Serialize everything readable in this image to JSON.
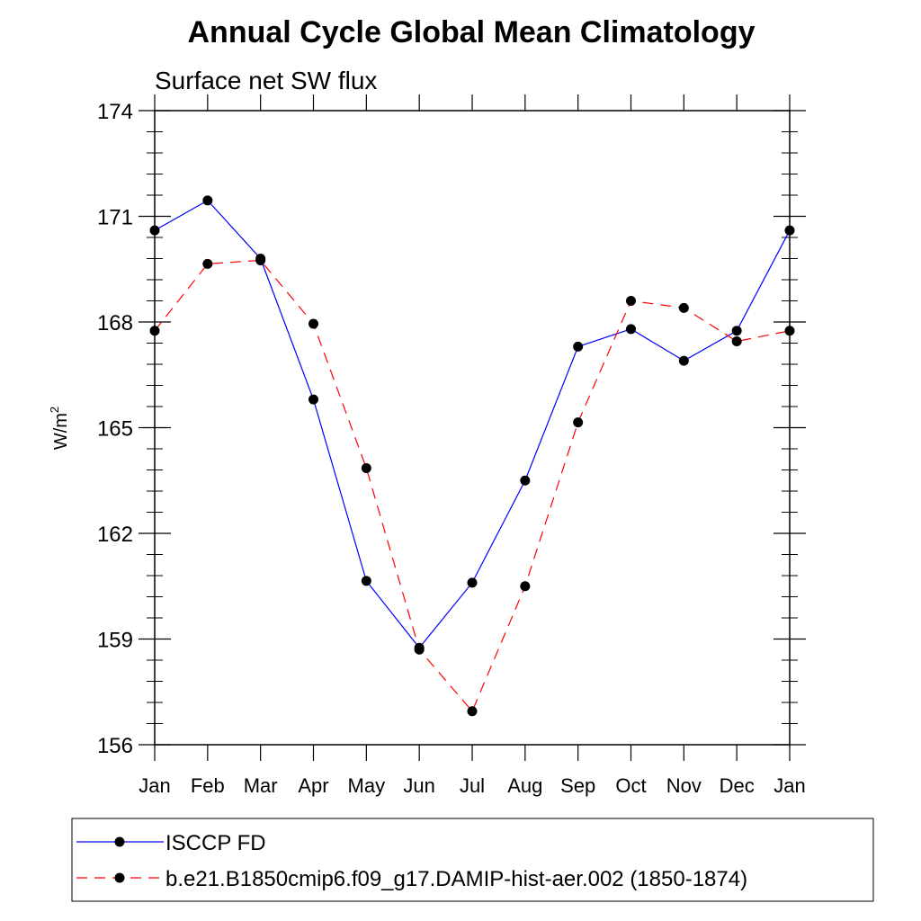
{
  "chart_data": {
    "type": "line",
    "title": "Annual Cycle Global Mean Climatology",
    "subtitle": "Surface net SW flux",
    "ylabel": "W/m",
    "ylabel_superscript": "2",
    "ylim": [
      156,
      174
    ],
    "yticks": [
      156,
      159,
      162,
      165,
      168,
      171,
      174
    ],
    "categories": [
      "Jan",
      "Feb",
      "Mar",
      "Apr",
      "May",
      "Jun",
      "Jul",
      "Aug",
      "Sep",
      "Oct",
      "Nov",
      "Dec",
      "Jan"
    ],
    "grid": false,
    "legend_position": "bottom",
    "series": [
      {
        "name": "ISCCP FD",
        "color": "#0000ff",
        "line_style": "solid",
        "values": [
          170.6,
          171.45,
          169.8,
          165.8,
          160.65,
          158.75,
          160.6,
          163.5,
          167.3,
          167.8,
          166.9,
          167.75,
          170.6
        ]
      },
      {
        "name": "b.e21.B1850cmip6.f09_g17.DAMIP-hist-aer.002 (1850-1874)",
        "color": "#ff0000",
        "line_style": "dashed",
        "values": [
          167.75,
          169.65,
          169.75,
          167.95,
          163.85,
          158.7,
          156.95,
          160.5,
          165.15,
          168.6,
          168.4,
          167.45,
          167.75
        ]
      }
    ]
  }
}
